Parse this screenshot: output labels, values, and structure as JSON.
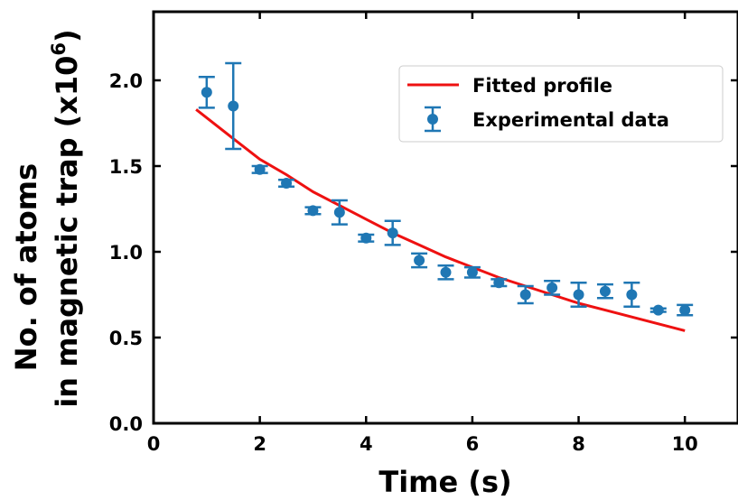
{
  "chart_data": {
    "type": "scatter",
    "xlabel": "Time (s)",
    "ylabel_line1": "No. of atoms",
    "ylabel_line2": "in magnetic trap (x10",
    "ylabel_exponent": "6",
    "ylabel_close": ")",
    "xlim": [
      0,
      11
    ],
    "ylim": [
      0,
      2.4
    ],
    "x_ticks": [
      "0",
      "2",
      "4",
      "6",
      "8",
      "10"
    ],
    "x_tick_values": [
      0,
      2,
      4,
      6,
      8,
      10
    ],
    "y_ticks": [
      "0.0",
      "0.5",
      "1.0",
      "1.5",
      "2.0"
    ],
    "y_tick_values": [
      0.0,
      0.5,
      1.0,
      1.5,
      2.0
    ],
    "legend_position": "top-right",
    "legend": {
      "fit_label": "Fitted profile",
      "data_label": "Experimental data"
    },
    "series": [
      {
        "name": "Experimental data",
        "kind": "errorbar",
        "color": "#1f77b4",
        "x": [
          1.0,
          1.5,
          2.0,
          2.5,
          3.0,
          3.5,
          4.0,
          4.5,
          5.0,
          5.5,
          6.0,
          6.5,
          7.0,
          7.5,
          8.0,
          8.5,
          9.0,
          9.5,
          10.0
        ],
        "y": [
          1.93,
          1.85,
          1.48,
          1.4,
          1.24,
          1.23,
          1.08,
          1.11,
          0.95,
          0.88,
          0.88,
          0.82,
          0.75,
          0.79,
          0.75,
          0.77,
          0.75,
          0.66,
          0.66
        ],
        "err": [
          0.09,
          0.25,
          0.02,
          0.02,
          0.02,
          0.07,
          0.02,
          0.07,
          0.04,
          0.04,
          0.03,
          0.02,
          0.05,
          0.04,
          0.07,
          0.04,
          0.07,
          0.01,
          0.03
        ]
      },
      {
        "name": "Fitted profile",
        "kind": "line",
        "color": "#ee1111",
        "x": [
          0.8,
          1.5,
          2.0,
          2.5,
          3.0,
          3.5,
          4.0,
          4.5,
          5.0,
          5.5,
          6.0,
          6.5,
          7.0,
          7.5,
          8.0,
          8.5,
          9.0,
          9.5,
          10.0
        ],
        "y": [
          1.83,
          1.66,
          1.54,
          1.45,
          1.35,
          1.27,
          1.19,
          1.11,
          1.04,
          0.97,
          0.91,
          0.85,
          0.8,
          0.75,
          0.7,
          0.66,
          0.62,
          0.58,
          0.54
        ]
      }
    ]
  }
}
